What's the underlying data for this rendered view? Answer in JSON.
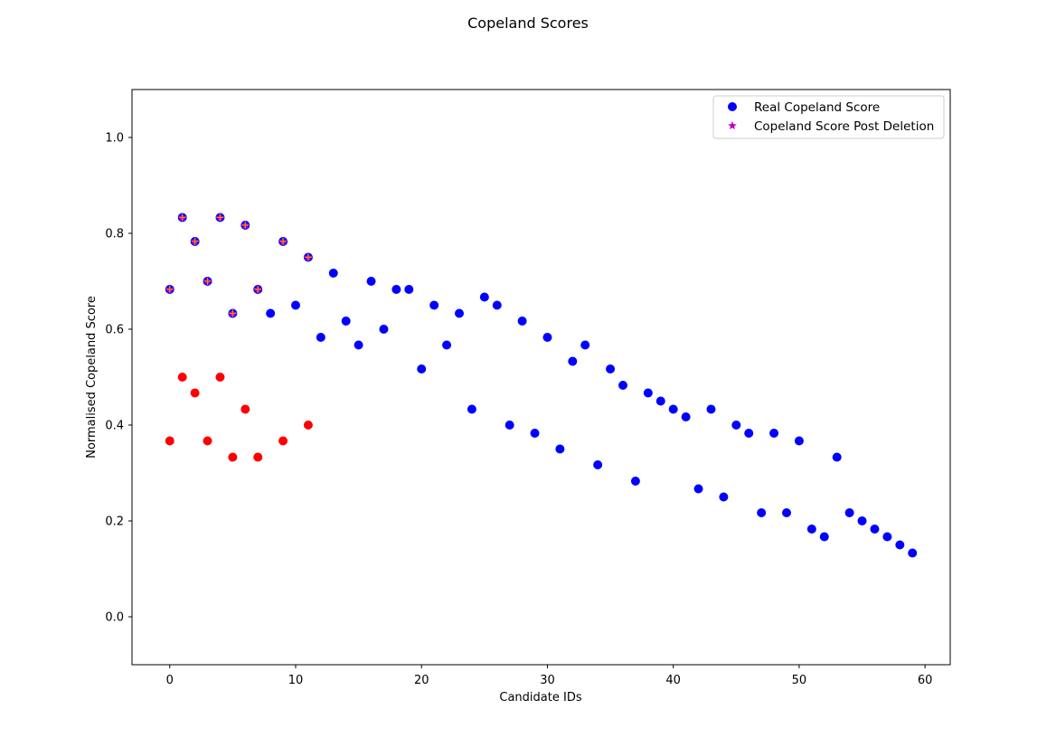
{
  "chart_data": {
    "type": "scatter",
    "title": "Copeland Scores",
    "xlabel": "Candidate IDs",
    "ylabel": "Normalised Copeland Score",
    "xlim": [
      -3,
      62
    ],
    "ylim": [
      -0.1,
      1.1
    ],
    "xticks": [
      0,
      10,
      20,
      30,
      40,
      50,
      60
    ],
    "yticks": [
      0.0,
      0.2,
      0.4,
      0.6,
      0.8,
      1.0
    ],
    "xtick_labels": [
      "0",
      "10",
      "20",
      "30",
      "40",
      "50",
      "60"
    ],
    "ytick_labels": [
      "0.0",
      "0.2",
      "0.4",
      "0.6",
      "0.8",
      "1.0"
    ],
    "grid": false,
    "legend_position": "upper right",
    "legend": [
      {
        "label": "Real Copeland Score",
        "marker": "circle",
        "color": "#0000ff"
      },
      {
        "label": "Copeland Score Post Deletion",
        "marker": "star",
        "color": "#bf00bf"
      }
    ],
    "series": [
      {
        "name": "Real Copeland Score",
        "marker": "circle",
        "color": "#0000ff",
        "x": [
          0,
          1,
          2,
          3,
          4,
          5,
          6,
          7,
          8,
          9,
          10,
          11,
          12,
          13,
          14,
          15,
          16,
          17,
          18,
          19,
          20,
          21,
          22,
          23,
          24,
          25,
          26,
          27,
          28,
          29,
          30,
          31,
          32,
          33,
          34,
          35,
          36,
          37,
          38,
          39,
          40,
          41,
          42,
          43,
          44,
          45,
          46,
          47,
          48,
          49,
          50,
          51,
          52,
          53,
          54,
          55,
          56,
          57,
          58,
          59
        ],
        "y": [
          0.683,
          0.833,
          0.783,
          0.7,
          0.833,
          0.633,
          0.817,
          0.683,
          0.633,
          0.783,
          0.65,
          0.75,
          0.583,
          0.717,
          0.617,
          0.567,
          0.7,
          0.6,
          0.683,
          0.683,
          0.517,
          0.65,
          0.567,
          0.633,
          0.433,
          0.667,
          0.65,
          0.4,
          0.617,
          0.383,
          0.583,
          0.35,
          0.533,
          0.567,
          0.317,
          0.517,
          0.483,
          0.283,
          0.467,
          0.45,
          0.433,
          0.417,
          0.267,
          0.433,
          0.25,
          0.4,
          0.383,
          0.217,
          0.383,
          0.217,
          0.367,
          0.183,
          0.167,
          0.333,
          0.217,
          0.2,
          0.183,
          0.167,
          0.15,
          0.133
        ]
      },
      {
        "name": "Copeland Score Post Deletion",
        "marker": "star",
        "color": "#bf00bf",
        "x": [
          0,
          1,
          2,
          3,
          4,
          5,
          6,
          7,
          9,
          11
        ],
        "y": [
          0.683,
          0.833,
          0.783,
          0.7,
          0.833,
          0.633,
          0.817,
          0.683,
          0.783,
          0.75
        ]
      },
      {
        "marker": "circle",
        "color": "#ff0000",
        "x": [
          0,
          1,
          2,
          3,
          4,
          5,
          6,
          7,
          9,
          11
        ],
        "y": [
          0.367,
          0.5,
          0.467,
          0.367,
          0.5,
          0.333,
          0.433,
          0.333,
          0.367,
          0.4
        ]
      },
      {
        "marker": "plus",
        "color": "#ff7f0e",
        "x": [
          0,
          1,
          2,
          3,
          4,
          5,
          6,
          7,
          9,
          11
        ],
        "y": [
          0.683,
          0.833,
          0.783,
          0.7,
          0.833,
          0.633,
          0.817,
          0.683,
          0.783,
          0.75
        ]
      }
    ]
  }
}
